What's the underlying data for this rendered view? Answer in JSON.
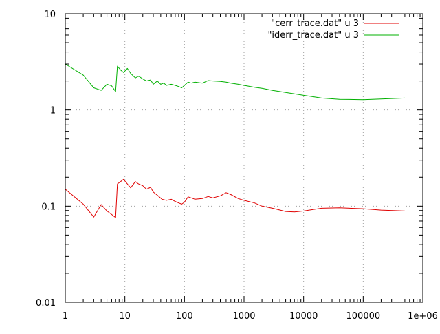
{
  "chart_data": {
    "type": "line",
    "title": "",
    "xlabel": "",
    "ylabel": "",
    "x_scale": "log",
    "y_scale": "log",
    "xlim": [
      1,
      1000000
    ],
    "ylim": [
      0.01,
      10
    ],
    "grid": true,
    "legend_position": "top-right",
    "x_ticks": [
      {
        "value": 1,
        "label": "1"
      },
      {
        "value": 10,
        "label": "10"
      },
      {
        "value": 100,
        "label": "100"
      },
      {
        "value": 1000,
        "label": "1000"
      },
      {
        "value": 10000,
        "label": "10000"
      },
      {
        "value": 100000,
        "label": "100000"
      },
      {
        "value": 1000000,
        "label": "1e+06"
      }
    ],
    "y_ticks": [
      {
        "value": 0.01,
        "label": "0.01"
      },
      {
        "value": 0.1,
        "label": "0.1"
      },
      {
        "value": 1,
        "label": "1"
      },
      {
        "value": 10,
        "label": "10"
      }
    ],
    "series": [
      {
        "name": "\"cerr_trace.dat\" u 3",
        "color": "#e00000",
        "points": [
          [
            1,
            0.15
          ],
          [
            2,
            0.105
          ],
          [
            3,
            0.077
          ],
          [
            4,
            0.104
          ],
          [
            5,
            0.089
          ],
          [
            6,
            0.082
          ],
          [
            7,
            0.076
          ],
          [
            7.5,
            0.17
          ],
          [
            8.5,
            0.18
          ],
          [
            9.5,
            0.19
          ],
          [
            11,
            0.17
          ],
          [
            12.5,
            0.155
          ],
          [
            15,
            0.18
          ],
          [
            17,
            0.17
          ],
          [
            20,
            0.163
          ],
          [
            23,
            0.15
          ],
          [
            27,
            0.157
          ],
          [
            30,
            0.14
          ],
          [
            35,
            0.13
          ],
          [
            42,
            0.118
          ],
          [
            50,
            0.115
          ],
          [
            60,
            0.118
          ],
          [
            70,
            0.112
          ],
          [
            80,
            0.108
          ],
          [
            90,
            0.105
          ],
          [
            100,
            0.11
          ],
          [
            115,
            0.125
          ],
          [
            130,
            0.122
          ],
          [
            150,
            0.118
          ],
          [
            200,
            0.12
          ],
          [
            250,
            0.126
          ],
          [
            300,
            0.122
          ],
          [
            400,
            0.128
          ],
          [
            500,
            0.138
          ],
          [
            600,
            0.132
          ],
          [
            800,
            0.12
          ],
          [
            1000,
            0.115
          ],
          [
            1500,
            0.108
          ],
          [
            2000,
            0.1
          ],
          [
            3000,
            0.095
          ],
          [
            5000,
            0.088
          ],
          [
            7000,
            0.087
          ],
          [
            10000,
            0.089
          ],
          [
            20000,
            0.095
          ],
          [
            40000,
            0.096
          ],
          [
            100000,
            0.094
          ],
          [
            200000,
            0.091
          ],
          [
            500000,
            0.089
          ]
        ]
      },
      {
        "name": "\"iderr_trace.dat\" u 3",
        "color": "#00b000",
        "points": [
          [
            1,
            3.0
          ],
          [
            2,
            2.3
          ],
          [
            3,
            1.7
          ],
          [
            4,
            1.6
          ],
          [
            5,
            1.85
          ],
          [
            6,
            1.78
          ],
          [
            7,
            1.55
          ],
          [
            7.5,
            2.85
          ],
          [
            8.5,
            2.6
          ],
          [
            9.5,
            2.45
          ],
          [
            11,
            2.7
          ],
          [
            12.5,
            2.4
          ],
          [
            15,
            2.15
          ],
          [
            17,
            2.25
          ],
          [
            20,
            2.1
          ],
          [
            23,
            2.0
          ],
          [
            27,
            2.05
          ],
          [
            30,
            1.85
          ],
          [
            35,
            2.0
          ],
          [
            40,
            1.85
          ],
          [
            45,
            1.9
          ],
          [
            50,
            1.8
          ],
          [
            60,
            1.85
          ],
          [
            70,
            1.8
          ],
          [
            80,
            1.75
          ],
          [
            90,
            1.7
          ],
          [
            100,
            1.8
          ],
          [
            115,
            1.95
          ],
          [
            130,
            1.9
          ],
          [
            150,
            1.95
          ],
          [
            200,
            1.9
          ],
          [
            250,
            2.02
          ],
          [
            300,
            2.0
          ],
          [
            400,
            1.98
          ],
          [
            500,
            1.95
          ],
          [
            600,
            1.9
          ],
          [
            800,
            1.85
          ],
          [
            1000,
            1.8
          ],
          [
            1500,
            1.72
          ],
          [
            2000,
            1.68
          ],
          [
            3000,
            1.6
          ],
          [
            5000,
            1.52
          ],
          [
            7000,
            1.47
          ],
          [
            10000,
            1.42
          ],
          [
            20000,
            1.33
          ],
          [
            40000,
            1.29
          ],
          [
            100000,
            1.28
          ],
          [
            200000,
            1.3
          ],
          [
            500000,
            1.33
          ]
        ]
      }
    ]
  }
}
